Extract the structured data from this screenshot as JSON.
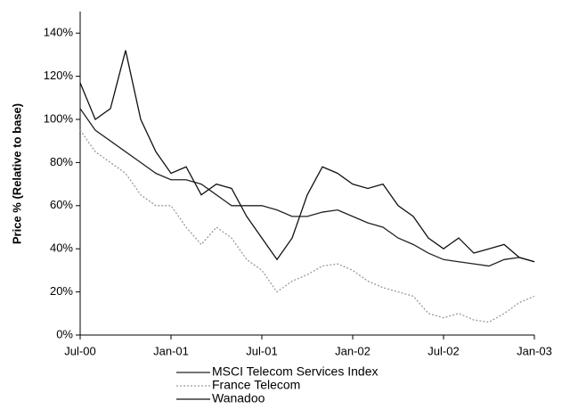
{
  "chart_data": {
    "type": "line",
    "y_label": "Price % (Relative to base)",
    "categories": [
      "Jul-00",
      null,
      null,
      null,
      null,
      null,
      "Jan-01",
      null,
      null,
      null,
      null,
      null,
      "Jul-01",
      null,
      null,
      null,
      null,
      null,
      "Jan-02",
      null,
      null,
      null,
      null,
      null,
      "Jul-02",
      null,
      null,
      null,
      null,
      null,
      "Jan-03"
    ],
    "series": [
      {
        "name": "MSCI Telecom Services Index",
        "color": "#222222",
        "dash": "none",
        "values": [
          105,
          95,
          90,
          85,
          80,
          75,
          72,
          72,
          70,
          65,
          60,
          60,
          60,
          58,
          55,
          55,
          57,
          58,
          55,
          52,
          50,
          45,
          42,
          38,
          35,
          34,
          33,
          32,
          35,
          36,
          34
        ]
      },
      {
        "name": "France Telecom",
        "color": "#9a9a9a",
        "dash": "2,2",
        "values": [
          95,
          85,
          80,
          75,
          65,
          60,
          60,
          50,
          42,
          50,
          45,
          35,
          30,
          20,
          25,
          28,
          32,
          33,
          30,
          25,
          22,
          20,
          18,
          10,
          8,
          10,
          7,
          6,
          10,
          15,
          18
        ]
      },
      {
        "name": "Wanadoo",
        "color": "#111111",
        "dash": "none",
        "values": [
          117,
          100,
          105,
          132,
          100,
          85,
          75,
          78,
          65,
          70,
          68,
          55,
          45,
          35,
          45,
          65,
          78,
          75,
          70,
          68,
          70,
          60,
          55,
          45,
          40,
          45,
          38,
          40,
          42,
          36,
          34
        ]
      }
    ],
    "ylim": [
      0,
      150
    ],
    "yticks": [
      {
        "value": 0,
        "label": "0%"
      },
      {
        "value": 20,
        "label": "20%"
      },
      {
        "value": 40,
        "label": "40%"
      },
      {
        "value": 60,
        "label": "60%"
      },
      {
        "value": 80,
        "label": "80%"
      },
      {
        "value": 100,
        "label": "100%"
      },
      {
        "value": 120,
        "label": "120%"
      },
      {
        "value": 140,
        "label": "140%"
      }
    ],
    "grid": false
  }
}
